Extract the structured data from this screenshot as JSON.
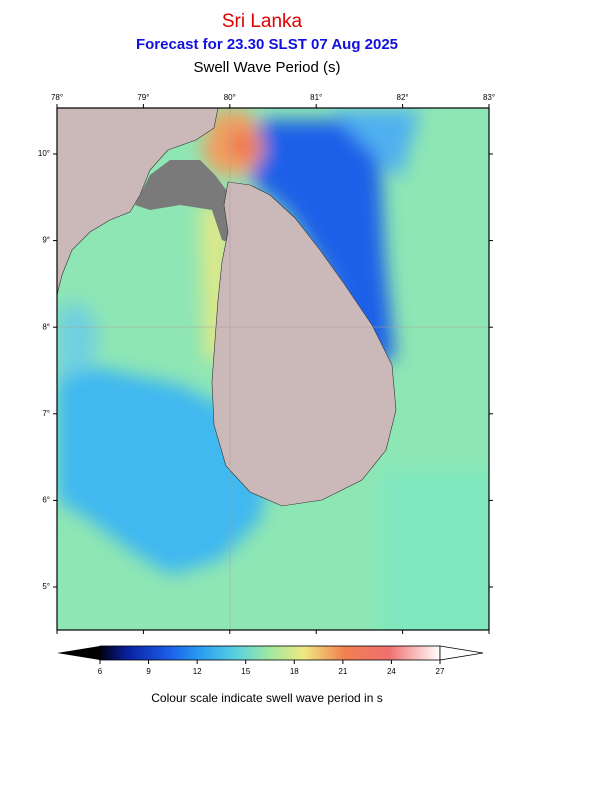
{
  "header": {
    "title": "Sri Lanka",
    "subtitle": "Forecast for  23.30 SLST 07 Aug 2025",
    "variable": "Swell Wave Period (s)"
  },
  "map": {
    "lon_labels": [
      "78°",
      "79°",
      "80°",
      "81°",
      "82°",
      "83°"
    ],
    "lat_labels": [
      "10°",
      "9°",
      "8°",
      "7°",
      "6°",
      "5°"
    ]
  },
  "colorbar": {
    "range": [
      6,
      27
    ],
    "ticks": [
      6,
      9,
      12,
      15,
      18,
      21,
      24,
      27
    ],
    "caption": "Colour scale indicate swell wave period in s"
  }
}
